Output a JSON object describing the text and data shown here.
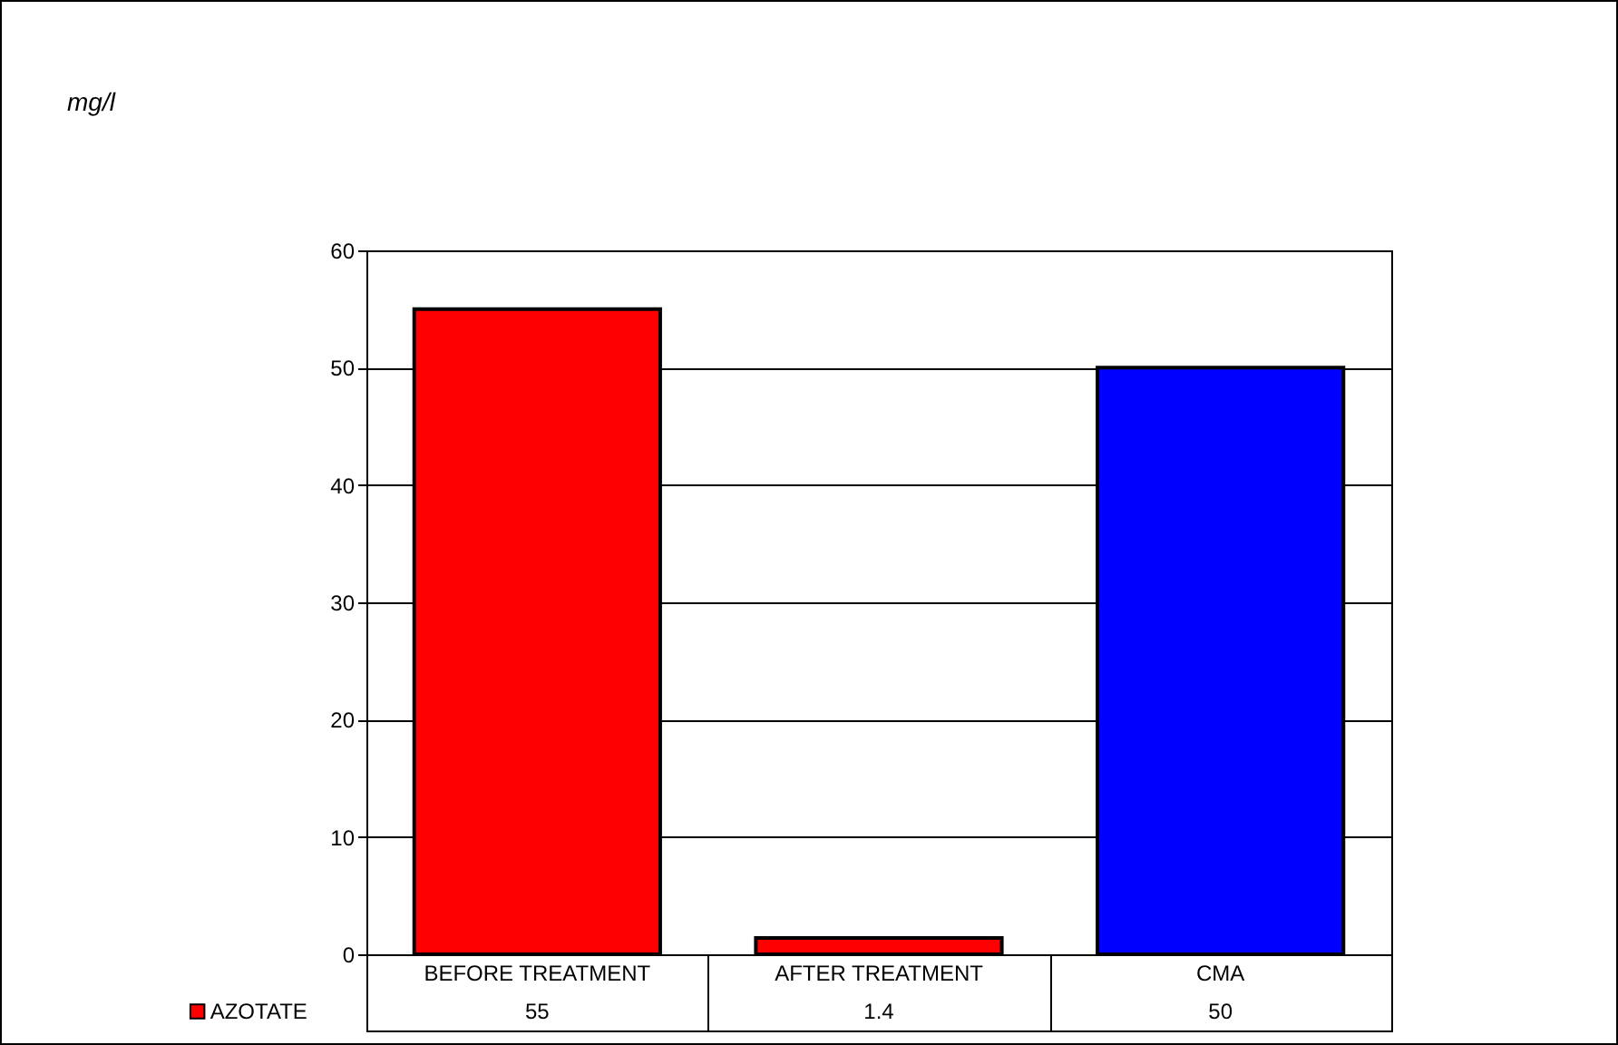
{
  "chart_data": {
    "type": "bar",
    "annotations": [
      "mg/l"
    ],
    "categories": [
      "BEFORE TREATMENT",
      "AFTER TREATMENT",
      "CMA"
    ],
    "series": [
      {
        "name": "AZOTATE",
        "color": "#ff0000",
        "colors": [
          "#ff0000",
          "#ff0000",
          "#0000ff"
        ],
        "values": [
          55,
          1.4,
          50
        ]
      }
    ],
    "ylim": [
      0,
      60
    ],
    "yticks": [
      0,
      10,
      20,
      30,
      40,
      50,
      60
    ],
    "grid": "y",
    "legend": "bottom",
    "data_labels": true
  }
}
